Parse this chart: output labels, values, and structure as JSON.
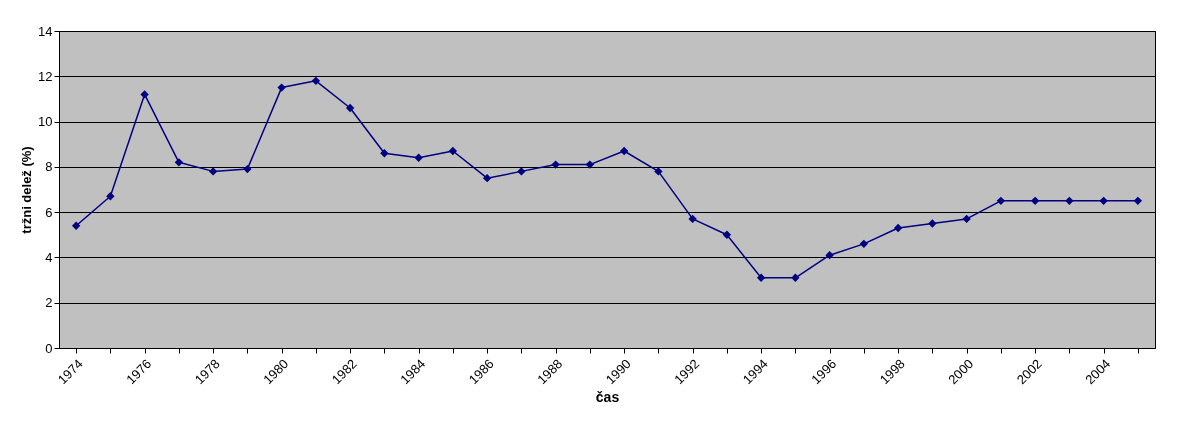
{
  "chart_data": {
    "type": "line",
    "xlabel": "čas",
    "ylabel": "tržni delež (%)",
    "categories": [
      "1974",
      null,
      "1976",
      null,
      "1978",
      null,
      "1980",
      null,
      "1982",
      null,
      "1984",
      null,
      "1986",
      null,
      "1988",
      null,
      "1990",
      null,
      "1992",
      null,
      "1994",
      null,
      "1996",
      null,
      "1998",
      null,
      "2000",
      null,
      "2002",
      null,
      "2004",
      null
    ],
    "series": [
      {
        "color": "#000080",
        "values": [
          5.4,
          6.7,
          11.2,
          8.2,
          7.8,
          7.9,
          11.5,
          11.8,
          10.6,
          8.6,
          8.4,
          8.7,
          7.5,
          7.8,
          8.1,
          8.1,
          8.7,
          7.8,
          5.7,
          5.0,
          3.1,
          3.1,
          4.1,
          4.6,
          5.3,
          5.5,
          5.7,
          6.5,
          6.5,
          6.5,
          6.5,
          6.5
        ]
      }
    ],
    "ylim": [
      0,
      14
    ],
    "yticks": [
      0,
      2,
      4,
      6,
      8,
      10,
      12,
      14
    ],
    "grid": "y",
    "marker": "diamond",
    "line_style": "solid"
  }
}
